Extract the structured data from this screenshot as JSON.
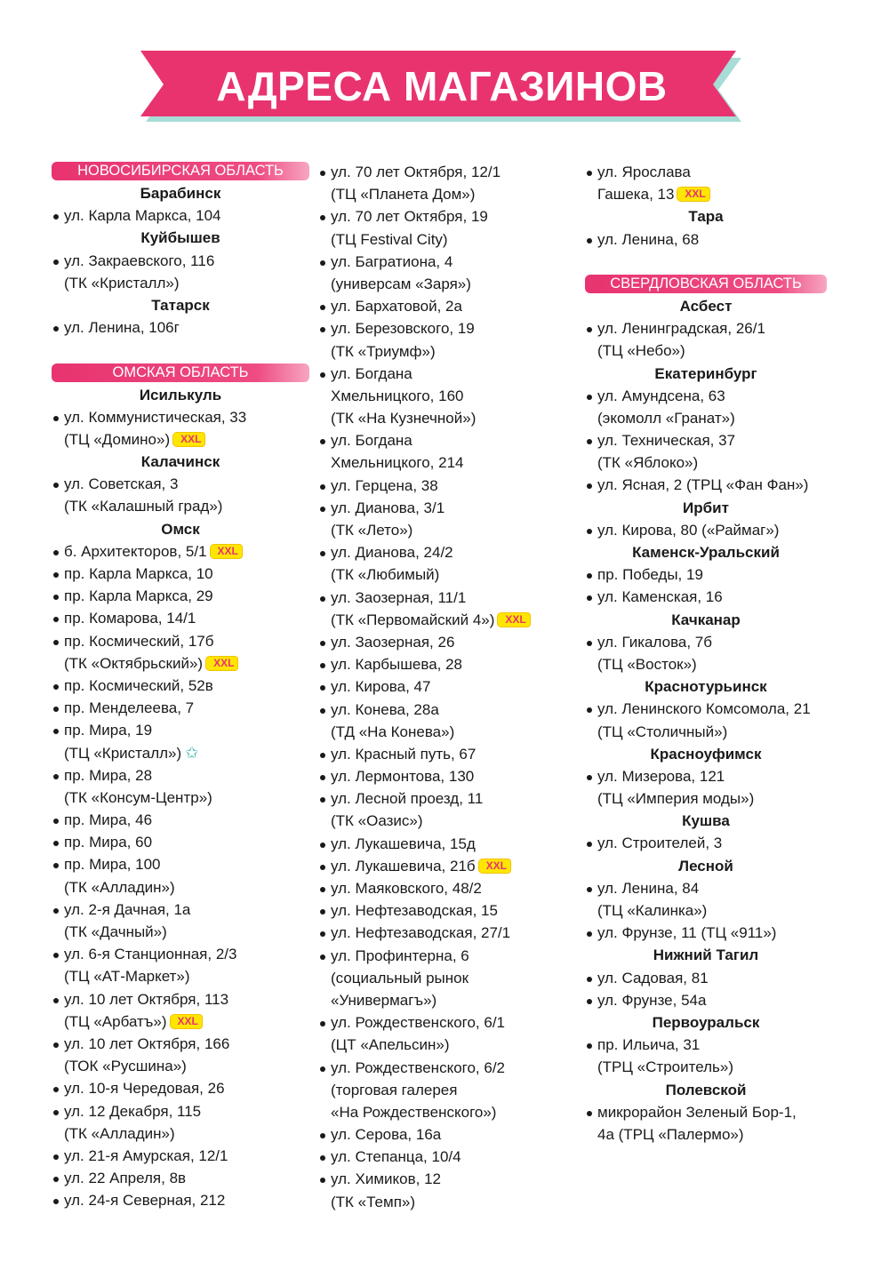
{
  "title": "АДРЕСА МАГАЗИНОВ",
  "colors": {
    "accent": "#e8336f",
    "shadow": "#a8dcd6",
    "badge": "#ffe600"
  },
  "badge_label": "XXL",
  "columns": [
    [
      {
        "t": "region",
        "text": "НОВОСИБИРСКАЯ ОБЛАСТЬ"
      },
      {
        "t": "city",
        "text": "Барабинск"
      },
      {
        "t": "addr",
        "text": "ул. Карла Маркса, 104"
      },
      {
        "t": "city",
        "text": "Куйбышев"
      },
      {
        "t": "addr",
        "text": "ул. Закраевского, 116"
      },
      {
        "t": "cont",
        "text": "(ТК «Кристалл»)"
      },
      {
        "t": "city",
        "text": "Татарск"
      },
      {
        "t": "addr",
        "text": "ул. Ленина, 106г"
      },
      {
        "t": "gap"
      },
      {
        "t": "region",
        "text": "ОМСКАЯ ОБЛАСТЬ"
      },
      {
        "t": "city",
        "text": "Исилькуль"
      },
      {
        "t": "addr",
        "text": "ул. Коммунистическая, 33"
      },
      {
        "t": "cont",
        "text": "(ТЦ «Домино»)",
        "badge": "xxl"
      },
      {
        "t": "city",
        "text": "Калачинск"
      },
      {
        "t": "addr",
        "text": "ул. Советская, 3"
      },
      {
        "t": "cont",
        "text": "(ТК «Калашный град»)"
      },
      {
        "t": "city",
        "text": "Омск"
      },
      {
        "t": "addr",
        "text": "б. Архитекторов, 5/1",
        "badge": "xxl"
      },
      {
        "t": "addr",
        "text": "пр. Карла Маркса, 10"
      },
      {
        "t": "addr",
        "text": "пр. Карла Маркса, 29"
      },
      {
        "t": "addr",
        "text": "пр. Комарова, 14/1"
      },
      {
        "t": "addr",
        "text": "пр. Космический, 17б"
      },
      {
        "t": "cont",
        "text": "(ТК «Октябрьский»)",
        "badge": "xxl"
      },
      {
        "t": "addr",
        "text": "пр. Космический, 52в"
      },
      {
        "t": "addr",
        "text": "пр. Менделеева, 7"
      },
      {
        "t": "addr",
        "text": "пр. Мира, 19"
      },
      {
        "t": "cont",
        "text": "(ТЦ «Кристалл»)",
        "badge": "star"
      },
      {
        "t": "addr",
        "text": "пр. Мира, 28"
      },
      {
        "t": "cont",
        "text": "(ТК «Консум-Центр»)"
      },
      {
        "t": "addr",
        "text": "пр. Мира, 46"
      },
      {
        "t": "addr",
        "text": "пр. Мира, 60"
      },
      {
        "t": "addr",
        "text": "пр. Мира, 100"
      },
      {
        "t": "cont",
        "text": "(ТК «Алладин»)"
      },
      {
        "t": "addr",
        "text": "ул. 2-я Дачная, 1а"
      },
      {
        "t": "cont",
        "text": "(ТК «Дачный»)"
      },
      {
        "t": "addr",
        "text": "ул. 6-я Станционная, 2/3"
      },
      {
        "t": "cont",
        "text": "(ТЦ «АТ-Маркет»)"
      },
      {
        "t": "addr",
        "text": "ул. 10 лет Октября, 113"
      },
      {
        "t": "cont",
        "text": "(ТЦ «Арбатъ»)",
        "badge": "xxl"
      },
      {
        "t": "addr",
        "text": "ул. 10 лет Октября, 166"
      },
      {
        "t": "cont",
        "text": "(ТОК «Русшина»)"
      },
      {
        "t": "addr",
        "text": "ул. 10-я Чередовая, 26"
      },
      {
        "t": "addr",
        "text": "ул. 12 Декабря, 115"
      },
      {
        "t": "cont",
        "text": "(ТК «Алладин»)"
      },
      {
        "t": "addr",
        "text": "ул. 21-я Амурская, 12/1"
      },
      {
        "t": "addr",
        "text": "ул. 22 Апреля, 8в"
      },
      {
        "t": "addr",
        "text": "ул. 24-я Северная, 212"
      }
    ],
    [
      {
        "t": "addr",
        "text": "ул. 70 лет Октября, 12/1"
      },
      {
        "t": "cont",
        "text": "(ТЦ «Планета Дом»)"
      },
      {
        "t": "addr",
        "text": "ул. 70 лет Октября, 19"
      },
      {
        "t": "cont",
        "text": "(ТЦ Festival City)"
      },
      {
        "t": "addr",
        "text": "ул. Багратиона, 4"
      },
      {
        "t": "cont",
        "text": "(универсам «Заря»)"
      },
      {
        "t": "addr",
        "text": "ул. Бархатовой, 2а"
      },
      {
        "t": "addr",
        "text": "ул. Березовского, 19"
      },
      {
        "t": "cont",
        "text": "(ТК «Триумф»)"
      },
      {
        "t": "addr",
        "text": "ул. Богдана"
      },
      {
        "t": "cont",
        "text": "Хмельницкого, 160"
      },
      {
        "t": "cont",
        "text": "(ТК «На Кузнечной»)"
      },
      {
        "t": "addr",
        "text": "ул. Богдана"
      },
      {
        "t": "cont",
        "text": "Хмельницкого, 214"
      },
      {
        "t": "addr",
        "text": "ул. Герцена, 38"
      },
      {
        "t": "addr",
        "text": "ул. Дианова, 3/1"
      },
      {
        "t": "cont",
        "text": "(ТК «Лето»)"
      },
      {
        "t": "addr",
        "text": "ул. Дианова, 24/2"
      },
      {
        "t": "cont",
        "text": "(ТК «Любимый)"
      },
      {
        "t": "addr",
        "text": "ул. Заозерная, 11/1"
      },
      {
        "t": "cont",
        "text": "(ТК «Первомайский 4»)",
        "badge": "xxl"
      },
      {
        "t": "addr",
        "text": "ул. Заозерная, 26"
      },
      {
        "t": "addr",
        "text": "ул. Карбышева, 28"
      },
      {
        "t": "addr",
        "text": "ул. Кирова, 47"
      },
      {
        "t": "addr",
        "text": "ул. Конева, 28а"
      },
      {
        "t": "cont",
        "text": "(ТД «На Конева»)"
      },
      {
        "t": "addr",
        "text": "ул. Красный путь, 67"
      },
      {
        "t": "addr",
        "text": "ул. Лермонтова, 130"
      },
      {
        "t": "addr",
        "text": "ул. Лесной проезд, 11"
      },
      {
        "t": "cont",
        "text": "(ТК «Оазис»)"
      },
      {
        "t": "addr",
        "text": "ул. Лукашевича, 15д"
      },
      {
        "t": "addr",
        "text": "ул. Лукашевича, 21б",
        "badge": "xxl"
      },
      {
        "t": "addr",
        "text": "ул. Маяковского, 48/2"
      },
      {
        "t": "addr",
        "text": "ул. Нефтезаводская, 15"
      },
      {
        "t": "addr",
        "text": "ул. Нефтезаводская, 27/1"
      },
      {
        "t": "addr",
        "text": "ул. Профинтерна, 6"
      },
      {
        "t": "cont",
        "text": "(социальный рынок"
      },
      {
        "t": "cont",
        "text": "«Универмагъ»)"
      },
      {
        "t": "addr",
        "text": "ул. Рождественского, 6/1"
      },
      {
        "t": "cont",
        "text": "(ЦТ «Апельсин»)"
      },
      {
        "t": "addr",
        "text": "ул. Рождественского, 6/2"
      },
      {
        "t": "cont",
        "text": "(торговая галерея"
      },
      {
        "t": "cont",
        "text": "«На Рождественского»)"
      },
      {
        "t": "addr",
        "text": "ул. Серова, 16а"
      },
      {
        "t": "addr",
        "text": "ул. Степанца, 10/4"
      },
      {
        "t": "addr",
        "text": "ул. Химиков, 12"
      },
      {
        "t": "cont",
        "text": "(ТК «Темп»)"
      }
    ],
    [
      {
        "t": "addr",
        "text": "ул. Ярослава"
      },
      {
        "t": "cont",
        "text": "Гашека, 13",
        "badge": "xxl"
      },
      {
        "t": "city",
        "text": "Тара"
      },
      {
        "t": "addr",
        "text": "ул. Ленина, 68"
      },
      {
        "t": "gap"
      },
      {
        "t": "region",
        "text": "СВЕРДЛОВСКАЯ ОБЛАСТЬ"
      },
      {
        "t": "city",
        "text": "Асбест"
      },
      {
        "t": "addr",
        "text": "ул. Ленинградская, 26/1"
      },
      {
        "t": "cont",
        "text": "(ТЦ «Небо»)"
      },
      {
        "t": "city",
        "text": "Екатеринбург"
      },
      {
        "t": "addr",
        "text": "ул. Амундсена, 63"
      },
      {
        "t": "cont",
        "text": "(экомолл «Гранат»)"
      },
      {
        "t": "addr",
        "text": "ул. Техническая, 37"
      },
      {
        "t": "cont",
        "text": "(ТК «Яблоко»)"
      },
      {
        "t": "addr",
        "text": "ул. Ясная, 2 (ТРЦ «Фан Фан»)"
      },
      {
        "t": "city",
        "text": "Ирбит"
      },
      {
        "t": "addr",
        "text": "ул. Кирова, 80 («Раймаг»)"
      },
      {
        "t": "city",
        "text": "Каменск-Уральский"
      },
      {
        "t": "addr",
        "text": "пр. Победы, 19"
      },
      {
        "t": "addr",
        "text": "ул. Каменская, 16"
      },
      {
        "t": "city",
        "text": "Качканар"
      },
      {
        "t": "addr",
        "text": "ул. Гикалова, 7б"
      },
      {
        "t": "cont",
        "text": "(ТЦ «Восток»)"
      },
      {
        "t": "city",
        "text": "Краснотурьинск"
      },
      {
        "t": "addr",
        "text": "ул. Ленинского Комсомола, 21"
      },
      {
        "t": "cont",
        "text": "(ТЦ «Столичный»)"
      },
      {
        "t": "city",
        "text": "Красноуфимск"
      },
      {
        "t": "addr",
        "text": "ул. Мизерова, 121"
      },
      {
        "t": "cont",
        "text": "(ТЦ «Империя моды»)"
      },
      {
        "t": "city",
        "text": "Кушва"
      },
      {
        "t": "addr",
        "text": "ул. Строителей, 3"
      },
      {
        "t": "city",
        "text": "Лесной"
      },
      {
        "t": "addr",
        "text": "ул. Ленина, 84"
      },
      {
        "t": "cont",
        "text": "(ТЦ «Калинка»)"
      },
      {
        "t": "addr",
        "text": "ул. Фрунзе, 11 (ТЦ «911»)"
      },
      {
        "t": "city",
        "text": "Нижний Тагил"
      },
      {
        "t": "addr",
        "text": "ул. Садовая, 81"
      },
      {
        "t": "addr",
        "text": "ул. Фрунзе, 54а"
      },
      {
        "t": "city",
        "text": "Первоуральск"
      },
      {
        "t": "addr",
        "text": "пр. Ильича, 31"
      },
      {
        "t": "cont",
        "text": "(ТРЦ «Строитель»)"
      },
      {
        "t": "city",
        "text": "Полевской"
      },
      {
        "t": "addr",
        "text": "микрорайон Зеленый Бор-1,"
      },
      {
        "t": "cont",
        "text": "4а (ТРЦ «Палермо»)"
      }
    ]
  ]
}
